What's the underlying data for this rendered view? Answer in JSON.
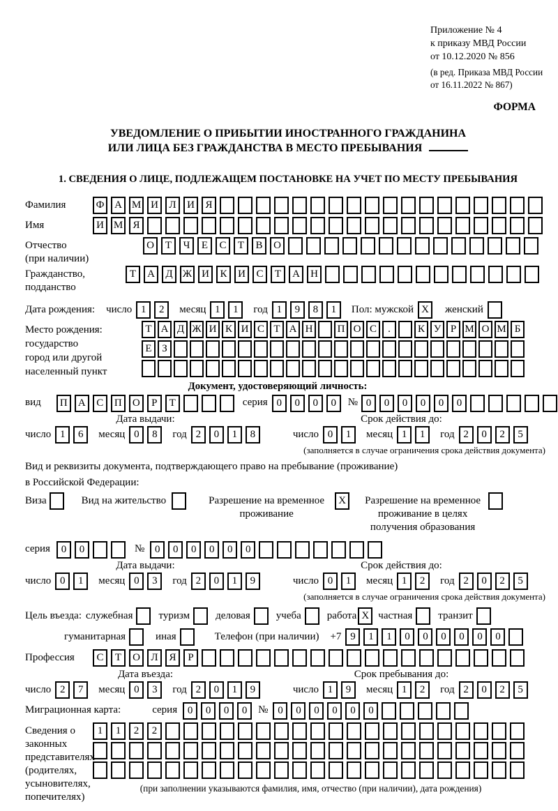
{
  "header": {
    "appendix": "Приложение № 4\nк приказу МВД России\nот 10.12.2020 № 856",
    "amendment": "(в ред. Приказа МВД России\nот 16.11.2022 № 867)",
    "form_label": "ФОРМА"
  },
  "title": {
    "line1": "УВЕДОМЛЕНИЕ О ПРИБЫТИИ ИНОСТРАННОГО ГРАЖДАНИНА",
    "line2": "ИЛИ ЛИЦА БЕЗ ГРАЖДАНСТВА В МЕСТО ПРЕБЫВАНИЯ"
  },
  "section1": {
    "heading": "1. СВЕДЕНИЯ О ЛИЦЕ, ПОДЛЕЖАЩЕМ ПОСТАНОВКЕ НА УЧЕТ ПО МЕСТУ ПРЕБЫВАНИЯ"
  },
  "labels": {
    "day": "число",
    "month": "месяц",
    "year": "год",
    "series": "серия",
    "number": "№",
    "issue_date": "Дата выдачи:",
    "valid_until": "Срок действия до:",
    "restriction_note": "(заполняется в случае ограничения срока действия документа)"
  },
  "fields": {
    "surname": {
      "label": "Фамилия",
      "cells": {
        "t": "ФАМИЛИЯ",
        "n": 25
      }
    },
    "given_name": {
      "label": "Имя",
      "cells": {
        "t": "ИМЯ",
        "n": 25
      }
    },
    "patronymic": {
      "label": "Отчество\n(при наличии)",
      "cells": {
        "t": "ОТЧЕСТВО",
        "n": 22
      }
    },
    "citizenship": {
      "label": "Гражданство,\nподданство",
      "cells": {
        "t": "ТАДЖИКИСТАН",
        "n": 23
      }
    },
    "birth_date": {
      "label": "Дата рождения:",
      "day": {
        "t": "12",
        "n": 2
      },
      "month": {
        "t": "11",
        "n": 2
      },
      "year": {
        "t": "1981",
        "n": 4
      },
      "sex_male_label": "Пол: мужской",
      "sex_male": {
        "t": "X",
        "n": 1
      },
      "sex_female_label": "женский",
      "sex_female": {
        "t": "",
        "n": 1
      }
    },
    "birth_place": {
      "label": "Место рождения:\nгосударство\nгород или другой\nнаселенный пункт",
      "row1": {
        "t": "ТАДЖИКИСТАН ПОС. КУРМОМБ",
        "n": 24
      },
      "row2": {
        "t": "ЕЗ",
        "n": 24
      },
      "row3": {
        "t": "",
        "n": 24
      }
    },
    "identity_doc": {
      "heading": "Документ, удостоверяющий личность:",
      "kind_label": "вид",
      "kind": {
        "t": "ПАСПОРТ",
        "n": 10
      },
      "series": {
        "t": "0000",
        "n": 4
      },
      "number": {
        "t": "000000",
        "n": 11
      },
      "issue": {
        "day": {
          "t": "16",
          "n": 2
        },
        "month": {
          "t": "08",
          "n": 2
        },
        "year": {
          "t": "2018",
          "n": 4
        }
      },
      "expiry": {
        "day": {
          "t": "01",
          "n": 2
        },
        "month": {
          "t": "11",
          "n": 2
        },
        "year": {
          "t": "2025",
          "n": 4
        }
      }
    },
    "residence_doc": {
      "line1": "Вид и реквизиты документа, подтверждающего право на пребывание (проживание)",
      "line2": "в Российской Федерации:",
      "options": [
        {
          "label": "Виза",
          "box": {
            "t": "",
            "n": 1
          }
        },
        {
          "label": "Вид на жительство",
          "box": {
            "t": "",
            "n": 1
          }
        },
        {
          "label": "Разрешение на временное\nпроживание",
          "box": {
            "t": "X",
            "n": 1
          }
        },
        {
          "label": "Разрешение на временное\nпроживание в целях\nполучения образования",
          "box": {
            "t": "",
            "n": 1
          }
        }
      ],
      "series": {
        "t": "00",
        "n": 4
      },
      "number": {
        "t": "000000",
        "n": 13
      },
      "issue": {
        "day": {
          "t": "01",
          "n": 2
        },
        "month": {
          "t": "03",
          "n": 2
        },
        "year": {
          "t": "2019",
          "n": 4
        }
      },
      "expiry": {
        "day": {
          "t": "01",
          "n": 2
        },
        "month": {
          "t": "12",
          "n": 2
        },
        "year": {
          "t": "2025",
          "n": 4
        }
      }
    },
    "purpose": {
      "label": "Цель въезда:",
      "options": [
        {
          "label": "служебная",
          "box": {
            "t": "",
            "n": 1
          }
        },
        {
          "label": "туризм",
          "box": {
            "t": "",
            "n": 1
          }
        },
        {
          "label": "деловая",
          "box": {
            "t": "",
            "n": 1
          }
        },
        {
          "label": "учеба",
          "box": {
            "t": "",
            "n": 1
          }
        },
        {
          "label": "работа",
          "box": {
            "t": "X",
            "n": 1
          }
        },
        {
          "label": "частная",
          "box": {
            "t": "",
            "n": 1
          }
        },
        {
          "label": "транзит",
          "box": {
            "t": "",
            "n": 1
          }
        },
        {
          "label": "гуманитарная",
          "box": {
            "t": "",
            "n": 1
          }
        },
        {
          "label": "иная",
          "box": {
            "t": "",
            "n": 1
          }
        }
      ]
    },
    "phone": {
      "label": "Телефон (при наличии)",
      "prefix": "+7",
      "cells": {
        "t": "911000000",
        "n": 10
      }
    },
    "profession": {
      "label": "Профессия",
      "cells": {
        "t": "СТОЛЯР",
        "n": 24
      }
    },
    "entry": {
      "heading_left": "Дата въезда:",
      "heading_right": "Срок пребывания до:",
      "date": {
        "day": {
          "t": "27",
          "n": 2
        },
        "month": {
          "t": "03",
          "n": 2
        },
        "year": {
          "t": "2019",
          "n": 4
        }
      },
      "until": {
        "day": {
          "t": "19",
          "n": 2
        },
        "month": {
          "t": "12",
          "n": 2
        },
        "year": {
          "t": "2025",
          "n": 4
        }
      }
    },
    "migration_card": {
      "label": "Миграционная карта:",
      "series": {
        "t": "0000",
        "n": 4
      },
      "number": {
        "t": "000000",
        "n": 11
      }
    },
    "legal_reps": {
      "label": "Сведения о\nзаконных\nпредставителях\n(родителях,\nусыновителях,\nпопечителях)",
      "row1": {
        "t": "1122",
        "n": 24
      },
      "row2": {
        "t": "",
        "n": 24
      },
      "row3": {
        "t": "",
        "n": 24
      },
      "caption": "(при заполнении указываются фамилия, имя, отчество (при наличии), дата рождения)"
    }
  }
}
